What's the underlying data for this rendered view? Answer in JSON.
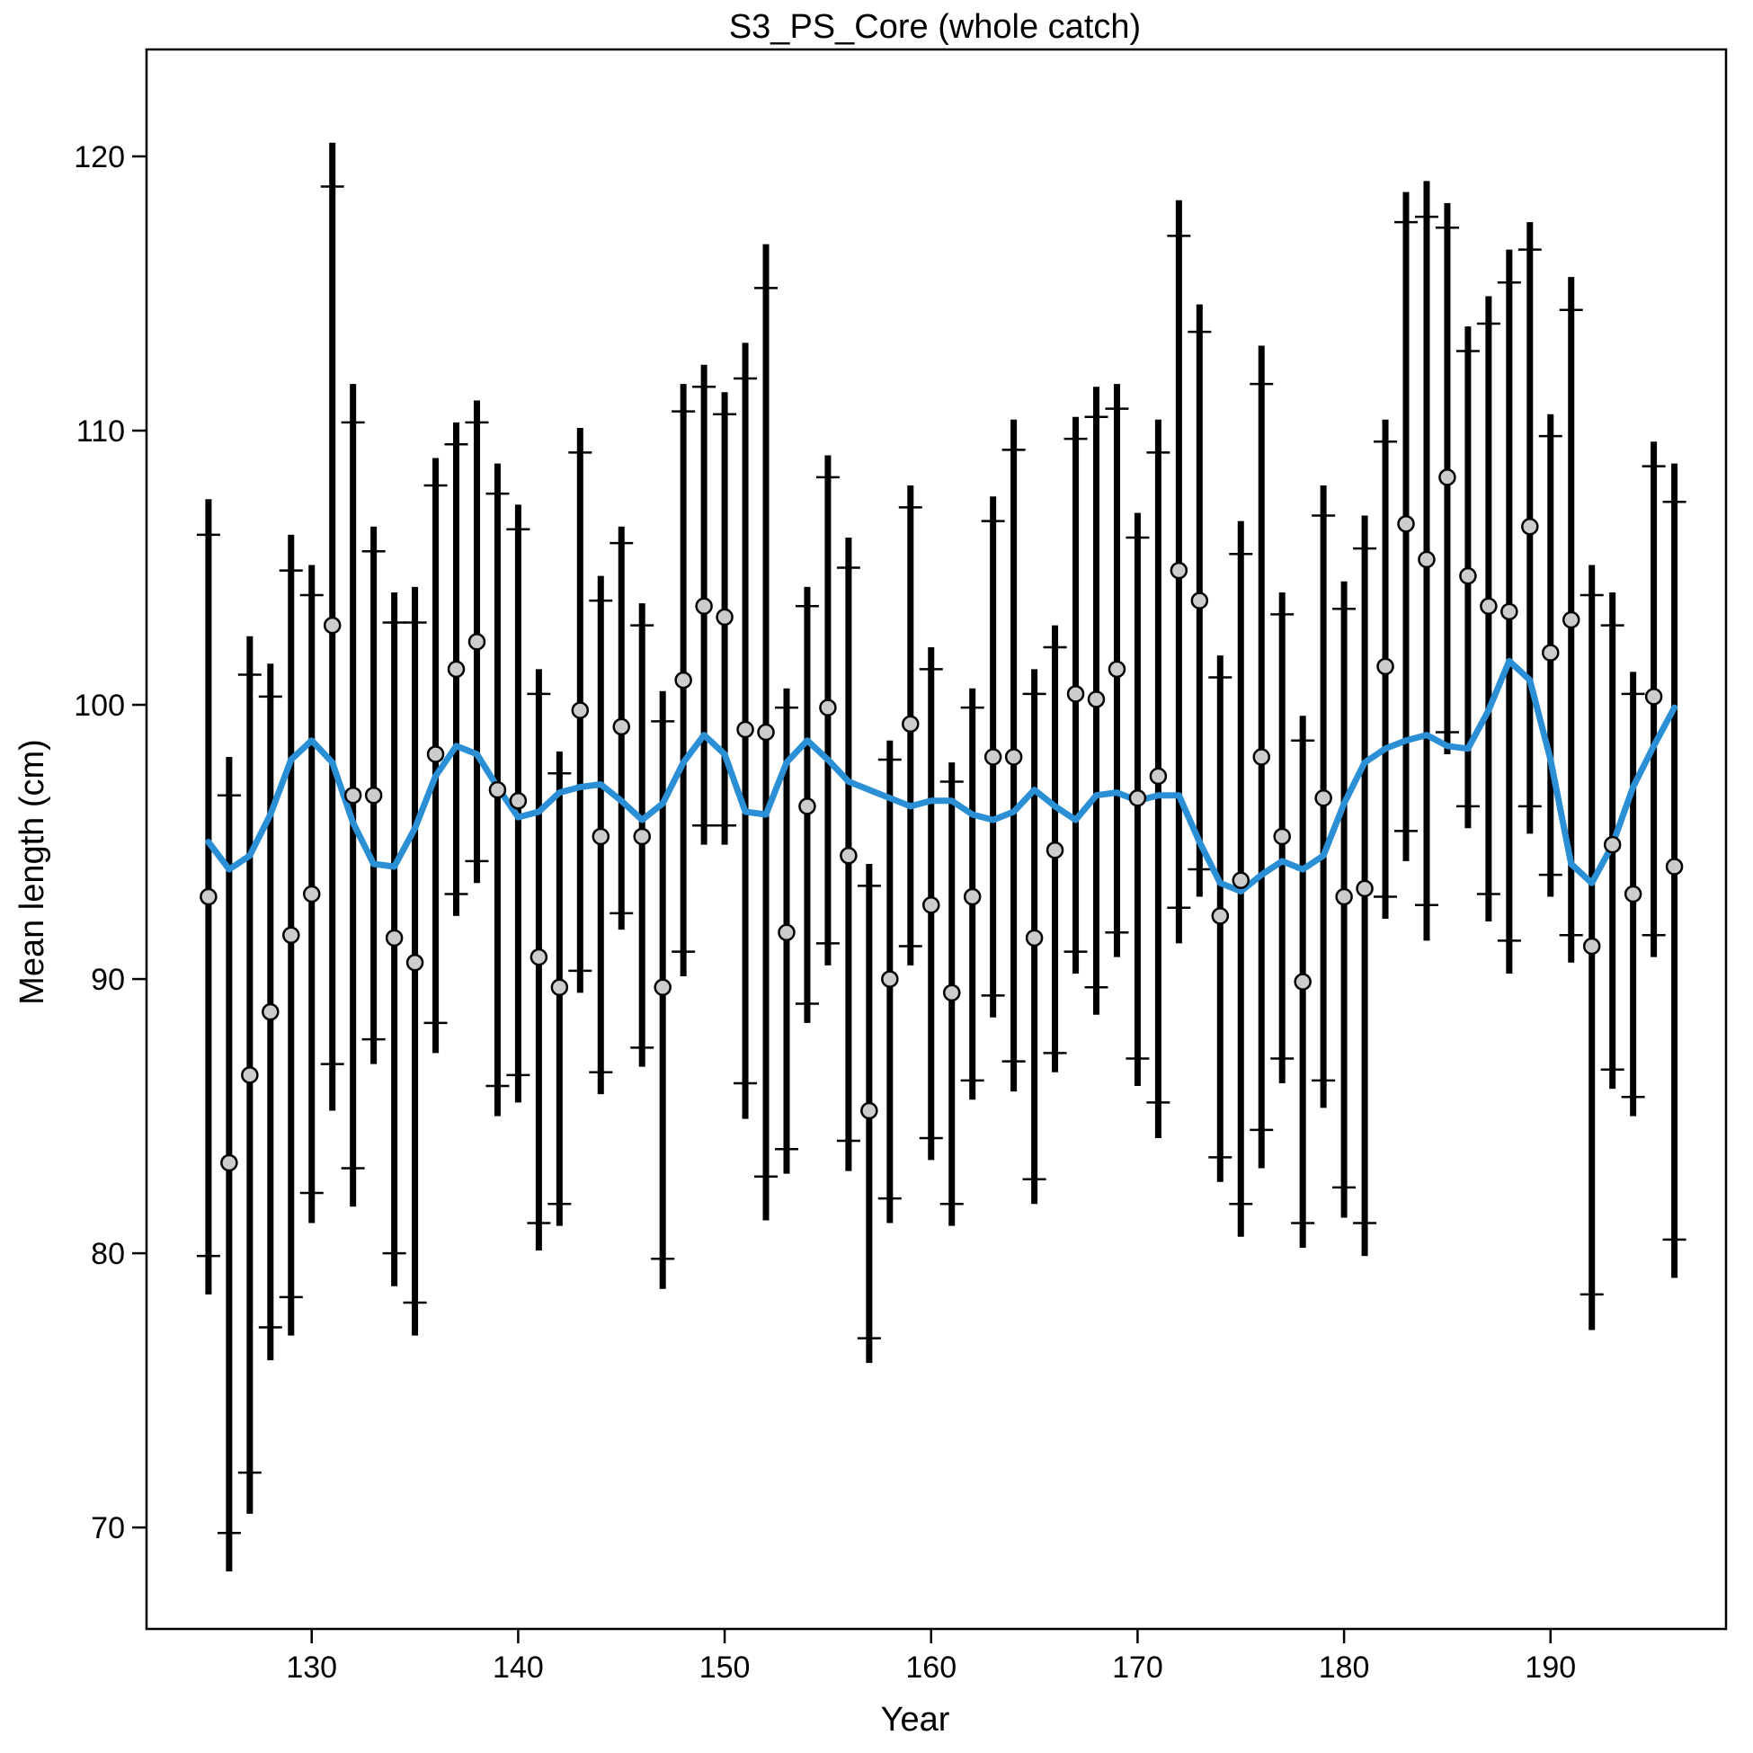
{
  "chart_data": {
    "type": "line",
    "title": "S3_PS_Core (whole catch)",
    "xlabel": "Year",
    "ylabel": "Mean length (cm)",
    "xlim": [
      122,
      198.5
    ],
    "ylim": [
      66.3,
      123.9
    ],
    "xticks": [
      130,
      140,
      150,
      160,
      170,
      180,
      190
    ],
    "yticks": [
      70,
      80,
      90,
      100,
      110,
      120
    ],
    "grid": false,
    "legend": "none",
    "colors": {
      "expected_line": "#2b8fd6",
      "observed_fill": "#cccccc",
      "interval": "#000000"
    },
    "x": [
      125,
      126,
      127,
      128,
      129,
      130,
      131,
      132,
      133,
      134,
      135,
      136,
      137,
      138,
      139,
      140,
      141,
      142,
      143,
      144,
      145,
      146,
      147,
      148,
      149,
      150,
      151,
      152,
      153,
      154,
      155,
      156,
      157,
      158,
      159,
      160,
      161,
      162,
      163,
      164,
      165,
      166,
      167,
      168,
      169,
      170,
      171,
      172,
      173,
      174,
      175,
      176,
      177,
      178,
      179,
      180,
      181,
      182,
      183,
      184,
      185,
      186,
      187,
      188,
      189,
      190,
      191,
      192,
      193,
      194,
      195,
      196
    ],
    "series": [
      {
        "role": "observed",
        "values": [
          93,
          83.3,
          86.5,
          88.8,
          91.6,
          93.1,
          102.9,
          96.7,
          96.7,
          91.5,
          90.6,
          98.2,
          101.3,
          102.3,
          96.9,
          96.5,
          90.8,
          89.7,
          99.8,
          95.2,
          99.2,
          95.2,
          89.7,
          100.9,
          103.6,
          103.2,
          99.1,
          99,
          91.7,
          96.3,
          99.9,
          94.5,
          85.2,
          90,
          99.3,
          92.7,
          89.5,
          93,
          98.1,
          98.1,
          91.5,
          94.7,
          100.4,
          100.2,
          101.3,
          96.6,
          97.4,
          104.9,
          103.8,
          92.3,
          93.6,
          98.1,
          95.2,
          89.9,
          96.6,
          93,
          93.3,
          101.4,
          106.6,
          105.3,
          108.3,
          104.7,
          103.6,
          103.4,
          106.5,
          101.9,
          103.1,
          91.2,
          94.9,
          93.1,
          100.3,
          94.1
        ]
      },
      {
        "role": "expected",
        "values": [
          95,
          94,
          94.5,
          96,
          98,
          98.7,
          97.9,
          95.7,
          94.2,
          94.1,
          95.5,
          97.4,
          98.5,
          98.2,
          97,
          95.9,
          96.1,
          96.8,
          97,
          97.1,
          96.5,
          95.8,
          96.4,
          97.9,
          98.9,
          98.2,
          96.1,
          96,
          97.9,
          98.7,
          98,
          97.2,
          96.9,
          96.6,
          96.3,
          96.5,
          96.5,
          96,
          95.8,
          96.1,
          96.9,
          96.3,
          95.8,
          96.7,
          96.8,
          96.5,
          96.7,
          96.7,
          95,
          93.5,
          93.2,
          93.8,
          94.3,
          94,
          94.5,
          96.4,
          97.9,
          98.4,
          98.7,
          98.9,
          98.5,
          98.4,
          99.8,
          101.6,
          100.9,
          98,
          94.2,
          93.5,
          94.9,
          97,
          98.5,
          99.9
        ]
      }
    ],
    "intervals_outer": {
      "lower": [
        78.5,
        68.4,
        70.5,
        76.1,
        77,
        81.1,
        85.2,
        81.7,
        86.9,
        78.8,
        77,
        87.3,
        92.3,
        93.5,
        85,
        85.5,
        80.1,
        81,
        89.5,
        85.8,
        91.8,
        86.8,
        78.7,
        90.1,
        94.9,
        94.9,
        84.9,
        81.2,
        82.9,
        88.4,
        90.5,
        83,
        76,
        81.1,
        90.5,
        83.4,
        81,
        85.6,
        88.6,
        85.9,
        81.8,
        86.6,
        90.2,
        88.7,
        90.8,
        86.1,
        84.2,
        91.3,
        93,
        82.6,
        80.6,
        83.1,
        86.2,
        80.2,
        85.3,
        81.3,
        79.9,
        92.2,
        94.3,
        91.4,
        98.2,
        95.5,
        92.1,
        90.2,
        95.3,
        93,
        90.6,
        77.2,
        86,
        85,
        90.8,
        79.1
      ],
      "upper": [
        107.5,
        98.1,
        102.5,
        101.5,
        106.2,
        105.1,
        120.5,
        111.7,
        106.5,
        104.1,
        104.3,
        109,
        110.3,
        111.1,
        108.8,
        107.3,
        101.3,
        98.3,
        110.1,
        104.7,
        106.5,
        103.7,
        100.5,
        111.7,
        112.4,
        111.4,
        113.2,
        116.8,
        100.6,
        104.3,
        109.1,
        106.1,
        94.2,
        98.7,
        108,
        102.1,
        97.9,
        100.6,
        107.6,
        110.4,
        101.3,
        102.9,
        110.5,
        111.6,
        111.7,
        107,
        110.4,
        118.4,
        114.6,
        101.8,
        106.7,
        113.1,
        104.1,
        99.6,
        108,
        104.5,
        106.9,
        110.4,
        118.7,
        119.1,
        118.3,
        113.8,
        114.9,
        116.6,
        117.6,
        110.6,
        115.6,
        105.1,
        104.1,
        101.2,
        109.6,
        108.8
      ]
    },
    "intervals_inner": {
      "lower": [
        79.9,
        69.8,
        72,
        77.3,
        78.4,
        82.2,
        86.9,
        83.1,
        87.8,
        80,
        78.2,
        88.4,
        93.1,
        94.3,
        86.1,
        86.5,
        81.1,
        81.8,
        90.3,
        86.6,
        92.4,
        87.5,
        79.8,
        91,
        95.6,
        95.6,
        86.2,
        82.8,
        83.8,
        89.1,
        91.3,
        84.1,
        76.9,
        82,
        91.2,
        84.2,
        81.8,
        86.3,
        89.4,
        87,
        82.7,
        87.3,
        91,
        89.7,
        91.7,
        87.1,
        85.5,
        92.6,
        94,
        83.5,
        81.8,
        84.5,
        87.1,
        81.1,
        86.3,
        82.4,
        81.1,
        93,
        95.4,
        92.7,
        99,
        96.3,
        93.1,
        91.4,
        96.3,
        93.8,
        91.6,
        78.5,
        86.7,
        85.7,
        91.6,
        80.5
      ],
      "upper": [
        106.2,
        96.7,
        101.1,
        100.3,
        104.9,
        104,
        118.9,
        110.3,
        105.6,
        103,
        103,
        108,
        109.5,
        110.3,
        107.7,
        106.4,
        100.4,
        97.5,
        109.2,
        103.8,
        105.9,
        102.9,
        99.4,
        110.7,
        111.6,
        110.6,
        111.9,
        115.2,
        99.9,
        103.6,
        108.3,
        105,
        93.4,
        98,
        107.2,
        101.3,
        97.2,
        99.9,
        106.7,
        109.3,
        100.4,
        102.1,
        109.7,
        110.5,
        110.8,
        106.1,
        109.2,
        117.1,
        113.6,
        101,
        105.5,
        111.7,
        103.3,
        98.7,
        106.9,
        103.5,
        105.7,
        109.6,
        117.6,
        117.8,
        117.4,
        112.9,
        113.9,
        115.4,
        116.6,
        109.8,
        114.4,
        104,
        102.9,
        100.4,
        108.7,
        107.4
      ]
    }
  }
}
